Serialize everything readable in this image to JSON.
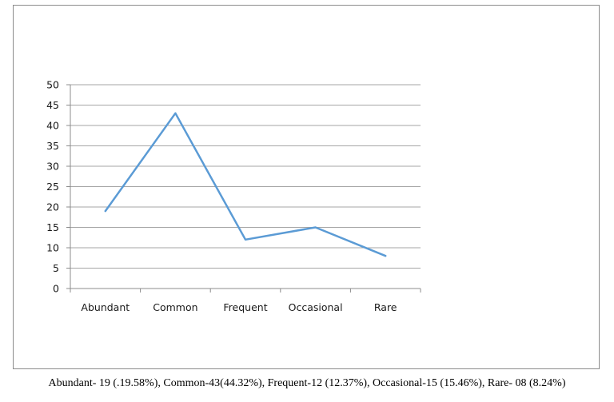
{
  "chart_data": {
    "type": "line",
    "title": "",
    "xlabel": "",
    "ylabel": "",
    "categories": [
      "Abundant",
      "Common",
      "Frequent",
      "Occasional",
      "Rare"
    ],
    "series": [
      {
        "values": [
          19,
          43,
          12,
          15,
          8
        ],
        "color": "#5b9bd5"
      }
    ],
    "ylim": [
      0,
      50
    ],
    "yticks": [
      0,
      5,
      10,
      15,
      20,
      25,
      30,
      35,
      40,
      45,
      50
    ],
    "grid": true,
    "legend": "none"
  },
  "caption": "Abundant- 19 (.19.58%), Common-43(44.32%), Frequent-12 (12.37%), Occasional-15 (15.46%), Rare- 08 (8.24%)"
}
